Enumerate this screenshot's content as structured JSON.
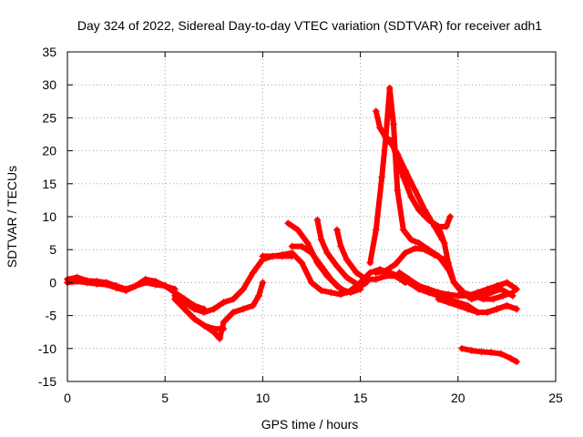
{
  "chart_data": {
    "type": "scatter",
    "title": "Day 324 of 2022, Sidereal Day-to-day VTEC variation (SDTVAR) for receiver adh1",
    "xlabel": "GPS time / hours",
    "ylabel": "SDTVAR / TECUs",
    "xlim": [
      0,
      25
    ],
    "ylim": [
      -15,
      35
    ],
    "xticks": [
      0,
      5,
      10,
      15,
      20,
      25
    ],
    "yticks": [
      -15,
      -10,
      -5,
      0,
      5,
      10,
      15,
      20,
      25,
      30,
      35
    ],
    "grid": true,
    "marker": "+",
    "color": "#ff0000",
    "series": [
      {
        "name": "track-1",
        "x": [
          0,
          0.5,
          1,
          1.5,
          2,
          2.5,
          3,
          3.5,
          4,
          4.5,
          5,
          5.5,
          6,
          6.5,
          7
        ],
        "y": [
          0.5,
          0.8,
          0.3,
          0.2,
          0,
          -0.5,
          -1,
          -0.5,
          0,
          -0.3,
          -0.5,
          -1.5,
          -2.5,
          -3.5,
          -4
        ]
      },
      {
        "name": "track-2",
        "x": [
          0,
          0.5,
          1,
          1.5,
          2,
          2.5,
          3,
          3.5,
          4,
          4.5,
          5,
          5.5
        ],
        "y": [
          0,
          0.2,
          0,
          -0.2,
          -0.3,
          -0.8,
          -1.2,
          -0.5,
          0.5,
          0.2,
          -0.5,
          -1
        ]
      },
      {
        "name": "track-3",
        "x": [
          5.5,
          6,
          6.5,
          7,
          7.5,
          8,
          8.5,
          9,
          9.5,
          10,
          10.5,
          11,
          11.5
        ],
        "y": [
          -2,
          -3,
          -4,
          -4.5,
          -4,
          -3,
          -2.5,
          -1,
          1.5,
          3.5,
          4,
          4,
          4
        ]
      },
      {
        "name": "track-4",
        "x": [
          6,
          6.5,
          7,
          7.5,
          7.8,
          8,
          8.5,
          9,
          9.5,
          9.8,
          10
        ],
        "y": [
          -4,
          -5.5,
          -6.5,
          -7.5,
          -8.5,
          -6,
          -4.5,
          -4,
          -3.5,
          -2,
          0
        ]
      },
      {
        "name": "track-5",
        "x": [
          5.5,
          6,
          6.5,
          7,
          7.5,
          8
        ],
        "y": [
          -2.5,
          -4,
          -5.5,
          -6.5,
          -7,
          -7
        ]
      },
      {
        "name": "track-6",
        "x": [
          10,
          10.5,
          11,
          11.5,
          12,
          12.5,
          13,
          13.5,
          14,
          14.5,
          15,
          15.5,
          16,
          16.5
        ],
        "y": [
          4,
          4,
          4.2,
          4.5,
          3,
          0,
          -1.2,
          -1.5,
          -1.8,
          -1.2,
          0,
          1.5,
          2,
          1.5
        ]
      },
      {
        "name": "track-7",
        "x": [
          11.3,
          11.8,
          12.3,
          12.8,
          13.3,
          13.8,
          14.3,
          14.8,
          15.3
        ],
        "y": [
          9,
          8,
          6,
          3,
          1,
          -0.5,
          -1.5,
          -1,
          0
        ]
      },
      {
        "name": "track-8",
        "x": [
          11.5,
          12,
          12.5,
          13,
          13.5,
          14,
          14.5,
          15
        ],
        "y": [
          5.5,
          5.5,
          4.5,
          2.5,
          0.5,
          -1,
          -1.5,
          -1
        ]
      },
      {
        "name": "track-9",
        "x": [
          12.8,
          13,
          13.3,
          13.8,
          14.3,
          14.8,
          15.3
        ],
        "y": [
          9.5,
          6.5,
          4.5,
          2.5,
          0.8,
          -0.2,
          0
        ]
      },
      {
        "name": "track-10",
        "x": [
          13.8,
          14,
          14.3,
          14.8,
          15.3,
          15.8,
          16.3,
          16.8,
          17.3
        ],
        "y": [
          8,
          5.5,
          3.5,
          1.5,
          0.5,
          0.5,
          1,
          1,
          0
        ]
      },
      {
        "name": "track-11",
        "x": [
          15.5,
          15.8,
          16.1,
          16.3,
          16.5,
          16.7,
          16.9,
          17.2,
          17.6,
          18,
          18.5,
          19,
          19.5
        ],
        "y": [
          3,
          8,
          16,
          22,
          29.5,
          24,
          14,
          8,
          6.5,
          6,
          5,
          4,
          2
        ]
      },
      {
        "name": "track-12",
        "x": [
          15.8,
          16,
          16.3,
          16.6,
          16.9,
          17.3,
          17.8,
          18.3,
          18.8,
          19.2
        ],
        "y": [
          26,
          23.5,
          22,
          21,
          19.5,
          17,
          14,
          11,
          8.5,
          6.5
        ]
      },
      {
        "name": "track-13",
        "x": [
          16.3,
          16.6,
          16.9,
          17.2,
          17.6,
          18,
          18.5,
          19,
          19.4,
          19.6
        ],
        "y": [
          22,
          21.5,
          18.5,
          16,
          13,
          11,
          9.5,
          8.5,
          8.5,
          10
        ]
      },
      {
        "name": "track-14",
        "x": [
          15.8,
          16.3,
          16.8,
          17.3,
          17.8,
          18.3,
          18.8,
          19.3,
          19.8,
          20.3,
          20.8,
          21.3,
          21.8,
          22.3,
          22.8
        ],
        "y": [
          1.5,
          1.8,
          2.8,
          4.5,
          5.2,
          5,
          4.2,
          3.5,
          0,
          -1.5,
          -2,
          -2.5,
          -2.5,
          -2,
          -1.5
        ]
      },
      {
        "name": "track-15",
        "x": [
          16.5,
          17,
          17.5,
          18,
          18.5,
          19,
          19.5,
          20,
          20.5,
          21,
          21.5,
          22,
          22.5,
          23
        ],
        "y": [
          1.5,
          1,
          0,
          -1,
          -1.5,
          -2,
          -2.5,
          -3,
          -3.5,
          -4.5,
          -4.5,
          -4,
          -3.5,
          -4
        ]
      },
      {
        "name": "track-16",
        "x": [
          17,
          17.5,
          18,
          18.5,
          19,
          19.5,
          20,
          20.5,
          21,
          21.5,
          22,
          22.5,
          23
        ],
        "y": [
          1.5,
          0.5,
          -0.5,
          -1,
          -1.5,
          -1.8,
          -2,
          -2,
          -1.5,
          -1,
          -0.5,
          0,
          -1
        ]
      },
      {
        "name": "track-17",
        "x": [
          19,
          19.3,
          19.5,
          19.8,
          20.2,
          20.7,
          21.2,
          21.7,
          22.2,
          22.8
        ],
        "y": [
          8.5,
          6,
          3,
          0,
          -1.5,
          -2.5,
          -2,
          -1.5,
          -1,
          -2
        ]
      },
      {
        "name": "track-18",
        "x": [
          20.2,
          20.7,
          21.2,
          21.7,
          22.2,
          22.7,
          23
        ],
        "y": [
          -10,
          -10.3,
          -10.5,
          -10.6,
          -10.8,
          -11.5,
          -12
        ]
      },
      {
        "name": "track-19",
        "x": [
          19,
          19.5,
          20,
          20.5,
          21,
          21.5,
          22,
          22.5,
          23
        ],
        "y": [
          -2.5,
          -3,
          -3.5,
          -4,
          -4.5,
          -4.5,
          -4,
          -3.5,
          -4
        ]
      }
    ]
  }
}
